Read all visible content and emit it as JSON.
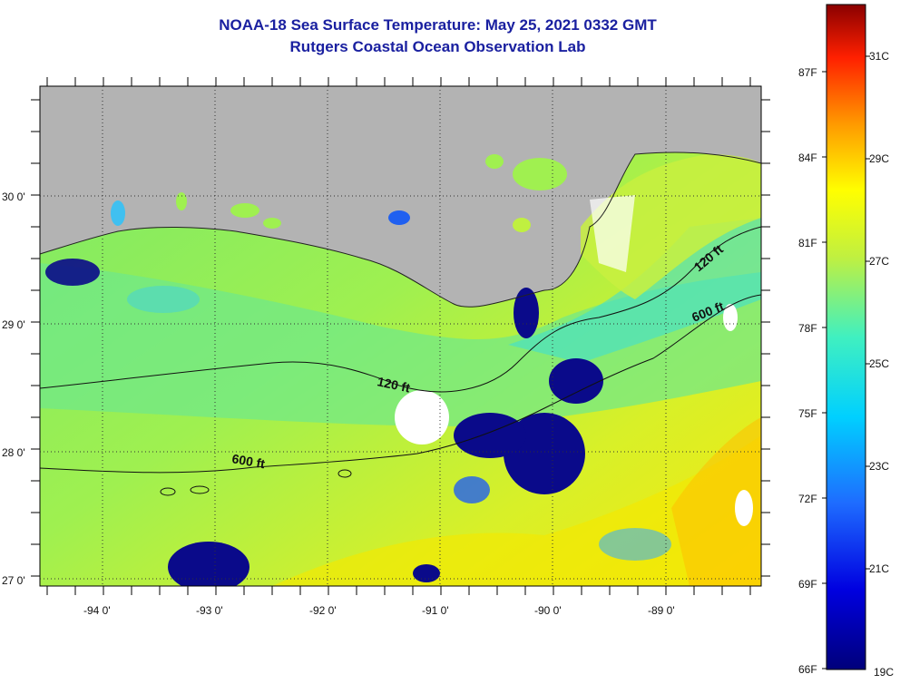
{
  "header": {
    "title": "NOAA-18 Sea Surface Temperature:  May 25, 2021 0332 GMT",
    "subtitle": "Rutgers Coastal Ocean Observation Lab"
  },
  "map": {
    "lon_labels": [
      "-94 0'",
      "-93 0'",
      "-92 0'",
      "-91 0'",
      "-90 0'",
      "-89 0'"
    ],
    "lat_labels": [
      "30 0'",
      "29 0'",
      "28 0'",
      "27 0'"
    ],
    "contour_labels": [
      "120 ft",
      "600 ft",
      "120 ft",
      "600 ft"
    ],
    "colors": {
      "land": "#b3b3b3",
      "water_base": "#7fe060",
      "cloud": "#ffffff",
      "cold_patch": "#0a0a8a"
    }
  },
  "colorbar": {
    "fahrenheit_labels": [
      "87F",
      "84F",
      "81F",
      "78F",
      "75F",
      "72F",
      "69F",
      "66F"
    ],
    "celsius_labels": [
      "31C",
      "29C",
      "27C",
      "25C",
      "23C",
      "21C",
      "19C"
    ]
  }
}
